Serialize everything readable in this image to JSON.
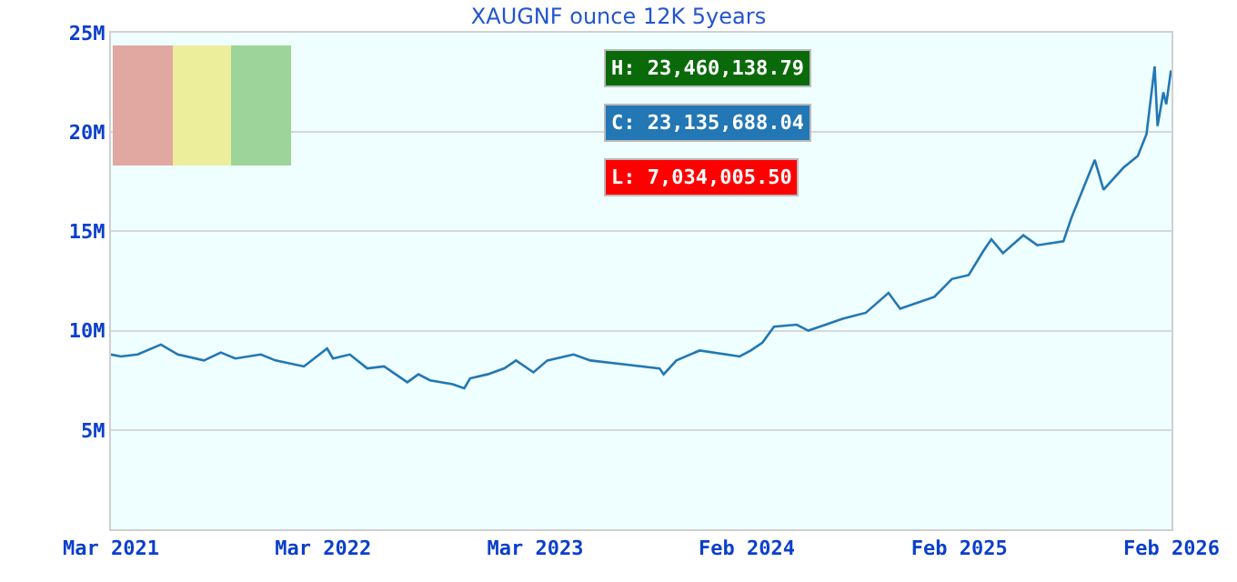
{
  "chart_data": {
    "type": "line",
    "title": "XAUGNF ounce 12K 5years",
    "x": [
      "2021-03-01",
      "2021-03-18",
      "2021-04-16",
      "2021-05-26",
      "2021-06-24",
      "2021-08-08",
      "2021-09-06",
      "2021-10-01",
      "2021-11-14",
      "2021-12-09",
      "2022-01-27",
      "2022-03-08",
      "2022-03-18",
      "2022-04-16",
      "2022-05-16",
      "2022-06-14",
      "2022-07-24",
      "2022-08-12",
      "2022-09-01",
      "2022-10-10",
      "2022-10-30",
      "2022-11-09",
      "2022-12-09",
      "2023-01-07",
      "2023-01-27",
      "2023-02-26",
      "2023-03-22",
      "2023-05-06",
      "2023-06-04",
      "2023-08-02",
      "2023-10-01",
      "2023-10-08",
      "2023-10-30",
      "2023-12-09",
      "2024-02-16",
      "2024-03-06",
      "2024-03-26",
      "2024-04-15",
      "2024-05-24",
      "2024-06-13",
      "2024-07-13",
      "2024-08-11",
      "2024-09-20",
      "2024-10-29",
      "2024-11-18",
      "2025-01-16",
      "2025-02-15",
      "2025-03-16",
      "2025-04-10",
      "2025-04-24",
      "2025-05-14",
      "2025-06-18",
      "2025-07-12",
      "2025-08-26",
      "2025-09-09",
      "2025-10-19",
      "2025-11-03",
      "2025-12-07",
      "2026-01-01",
      "2026-01-16",
      "2026-01-30",
      "2026-02-04",
      "2026-02-14",
      "2026-02-19",
      "2026-02-27"
    ],
    "series": [
      {
        "color": "#2277b4",
        "values": [
          8800000,
          8700000,
          8800000,
          9300000,
          8800000,
          8500000,
          8900000,
          8600000,
          8800000,
          8500000,
          8200000,
          9100000,
          8600000,
          8800000,
          8100000,
          8200000,
          7400000,
          7800000,
          7500000,
          7300000,
          7100000,
          7600000,
          7800000,
          8100000,
          8500000,
          7900000,
          8500000,
          8800000,
          8500000,
          8300000,
          8100000,
          7800000,
          8500000,
          9000000,
          8700000,
          9000000,
          9400000,
          10200000,
          10300000,
          10000000,
          10300000,
          10600000,
          10900000,
          11900000,
          11100000,
          11700000,
          12600000,
          12800000,
          14000000,
          14600000,
          13900000,
          14800000,
          14300000,
          14500000,
          15700000,
          18600000,
          17100000,
          18200000,
          18800000,
          19900000,
          23300000,
          20300000,
          22000000,
          21400000,
          23100000
        ]
      }
    ],
    "xlim": [
      "2021-03-01",
      "2026-02-28"
    ],
    "xticks": [
      {
        "value": "2021-03-01",
        "label": "Mar 2021"
      },
      {
        "value": "2022-03-01",
        "label": "Mar 2022"
      },
      {
        "value": "2023-03-01",
        "label": "Mar 2023"
      },
      {
        "value": "2024-02-28",
        "label": "Feb 2024"
      },
      {
        "value": "2025-02-28",
        "label": "Feb 2025"
      },
      {
        "value": "2026-02-28",
        "label": "Feb 2026"
      }
    ],
    "ylim": [
      0,
      25000000
    ],
    "yticks": [
      {
        "value": 5000000,
        "label": "5M"
      },
      {
        "value": 10000000,
        "label": "10M"
      },
      {
        "value": 15000000,
        "label": "15M"
      },
      {
        "value": 20000000,
        "label": "20M"
      },
      {
        "value": 25000000,
        "label": "25M"
      }
    ],
    "grid": "y",
    "legend": false,
    "marker": "none",
    "line_style": "solid",
    "annotations": [
      "H: 23,460,138.79",
      "C: 23,135,688.04",
      "L: 7,034,005.50"
    ]
  }
}
